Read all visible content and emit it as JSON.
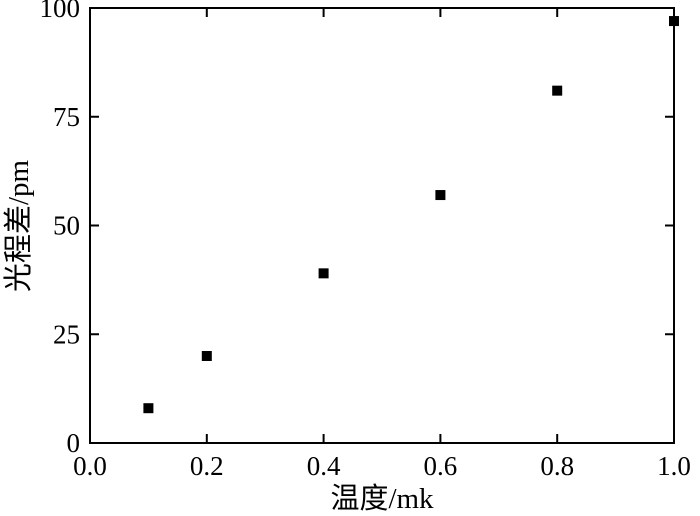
{
  "chart_data": {
    "type": "scatter",
    "xlabel": "温度/mk",
    "ylabel": "光程差/pm",
    "xlim": [
      0.0,
      1.0
    ],
    "ylim": [
      0,
      100
    ],
    "x_ticks": [
      "0.0",
      "0.2",
      "0.4",
      "0.6",
      "0.8",
      "1.0"
    ],
    "y_ticks": [
      "0",
      "25",
      "50",
      "75",
      "100"
    ],
    "grid": false,
    "marker": "square",
    "colors": {
      "marker": "#000000",
      "axis": "#000000"
    },
    "points": [
      {
        "x": 0.1,
        "y": 8
      },
      {
        "x": 0.2,
        "y": 20
      },
      {
        "x": 0.4,
        "y": 39
      },
      {
        "x": 0.6,
        "y": 57
      },
      {
        "x": 0.8,
        "y": 81
      },
      {
        "x": 1.0,
        "y": 97
      }
    ]
  }
}
